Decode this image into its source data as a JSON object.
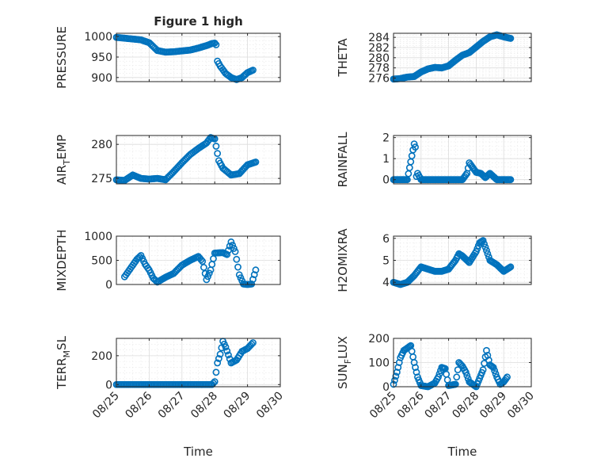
{
  "chart_data": [
    {
      "id": "pressure",
      "type": "scatter",
      "title": "Figure 1 high",
      "ylabel": "PRESSURE",
      "xlabel": "",
      "xlim": [
        "08/25",
        "08/30"
      ],
      "ylim": [
        890,
        1008
      ],
      "yticks": [
        "900",
        "950",
        "1000"
      ],
      "xticks": [],
      "grid": true,
      "color": "#0072bd",
      "x": [
        "08/25 00:00",
        "08/25 06:00",
        "08/25 12:00",
        "08/25 18:00",
        "08/26 00:00",
        "08/26 06:00",
        "08/26 12:00",
        "08/26 18:00",
        "08/27 00:00",
        "08/27 06:00",
        "08/27 12:00",
        "08/27 18:00",
        "08/27 22:00",
        "08/28 00:00",
        "08/28 01:00",
        "08/28 02:00",
        "08/28 04:00",
        "08/28 08:00",
        "08/28 12:00",
        "08/28 16:00",
        "08/28 20:00",
        "08/29 00:00",
        "08/29 04:00"
      ],
      "y": [
        998,
        996,
        994,
        992,
        985,
        966,
        962,
        963,
        965,
        967,
        972,
        978,
        983,
        984,
        980,
        940,
        928,
        910,
        900,
        895,
        900,
        912,
        918
      ]
    },
    {
      "id": "theta",
      "type": "scatter",
      "title": "",
      "ylabel": "THETA",
      "xlabel": "",
      "xlim": [
        "08/25",
        "08/30"
      ],
      "ylim": [
        275.3,
        284.8
      ],
      "yticks": [
        "276",
        "278",
        "280",
        "282",
        "284"
      ],
      "xticks": [],
      "grid": true,
      "color": "#0072bd",
      "x": [
        "08/25 00:00",
        "08/25 06:00",
        "08/25 12:00",
        "08/25 18:00",
        "08/26 00:00",
        "08/26 06:00",
        "08/26 12:00",
        "08/26 18:00",
        "08/27 00:00",
        "08/27 06:00",
        "08/27 12:00",
        "08/27 18:00",
        "08/28 00:00",
        "08/28 06:00",
        "08/28 12:00",
        "08/28 18:00",
        "08/29 00:00",
        "08/29 06:00"
      ],
      "y": [
        275.8,
        275.9,
        276.2,
        276.3,
        277.2,
        277.8,
        278.1,
        278.0,
        278.4,
        279.5,
        280.5,
        281.0,
        282.1,
        283.2,
        284.1,
        284.5,
        284.1,
        283.8
      ]
    },
    {
      "id": "air_temp",
      "type": "scatter",
      "title": "",
      "ylabel": "AIR_TEMP",
      "ylabel_parts": [
        "AIR",
        "T",
        "EMP"
      ],
      "xlabel": "",
      "xlim": [
        "08/25",
        "08/30"
      ],
      "ylim": [
        274.2,
        281.3
      ],
      "yticks": [
        "275",
        "280"
      ],
      "xticks": [],
      "grid": true,
      "color": "#0072bd",
      "x": [
        "08/25 00:00",
        "08/25 06:00",
        "08/25 12:00",
        "08/25 18:00",
        "08/26 00:00",
        "08/26 06:00",
        "08/26 12:00",
        "08/26 18:00",
        "08/27 00:00",
        "08/27 06:00",
        "08/27 12:00",
        "08/27 18:00",
        "08/27 21:00",
        "08/28 00:00",
        "08/28 03:00",
        "08/28 06:00",
        "08/28 12:00",
        "08/28 18:00",
        "08/29 00:00",
        "08/29 06:00"
      ],
      "y": [
        274.8,
        274.7,
        275.5,
        275.0,
        274.9,
        275.0,
        274.8,
        276.0,
        277.3,
        278.5,
        279.4,
        280.2,
        281.0,
        280.8,
        277.6,
        276.5,
        275.5,
        275.7,
        277.0,
        277.4
      ]
    },
    {
      "id": "rainfall",
      "type": "scatter",
      "title": "",
      "ylabel": "RAINFALL",
      "xlabel": "",
      "xlim": [
        "08/25",
        "08/30"
      ],
      "ylim": [
        -0.2,
        2.1
      ],
      "yticks": [
        "0",
        "1",
        "2"
      ],
      "xticks": [],
      "grid": true,
      "color": "#0072bd",
      "x": [
        "08/25 00:00",
        "08/25 06:00",
        "08/25 12:00",
        "08/25 15:00",
        "08/25 18:00",
        "08/25 19:00",
        "08/25 20:00",
        "08/25 21:00",
        "08/26 00:00",
        "08/26 06:00",
        "08/26 12:00",
        "08/26 18:00",
        "08/27 00:00",
        "08/27 06:00",
        "08/27 12:00",
        "08/27 16:00",
        "08/27 18:00",
        "08/28 00:00",
        "08/28 04:00",
        "08/28 08:00",
        "08/28 12:00",
        "08/28 18:00",
        "08/29 00:00",
        "08/29 06:00"
      ],
      "y": [
        0,
        0,
        0,
        0.85,
        1.7,
        1.55,
        0.15,
        0.3,
        0,
        0,
        0,
        0,
        0,
        0,
        0,
        0.3,
        0.8,
        0.35,
        0.3,
        0.1,
        0.3,
        0,
        0,
        0
      ]
    },
    {
      "id": "mixdepth",
      "type": "scatter",
      "title": "",
      "ylabel": "MIXDEPTH",
      "xlabel": "",
      "xlim": [
        "08/25",
        "08/30"
      ],
      "ylim": [
        0,
        1000
      ],
      "yticks": [
        "0",
        "500",
        "1000"
      ],
      "xticks": [],
      "grid": true,
      "color": "#0072bd",
      "x": [
        "08/25 06:00",
        "08/25 09:00",
        "08/25 12:00",
        "08/25 15:00",
        "08/25 18:00",
        "08/25 21:00",
        "08/26 00:00",
        "08/26 03:00",
        "08/26 06:00",
        "08/26 12:00",
        "08/26 18:00",
        "08/27 00:00",
        "08/27 06:00",
        "08/27 12:00",
        "08/27 15:00",
        "08/27 18:00",
        "08/27 21:00",
        "08/28 00:00",
        "08/28 06:00",
        "08/28 09:00",
        "08/28 12:00",
        "08/28 15:00",
        "08/28 18:00",
        "08/28 21:00",
        "08/29 00:00",
        "08/29 03:00",
        "08/29 06:00"
      ],
      "y": [
        160,
        280,
        400,
        520,
        600,
        420,
        300,
        130,
        50,
        150,
        230,
        400,
        500,
        580,
        480,
        100,
        300,
        650,
        660,
        620,
        880,
        680,
        200,
        10,
        0,
        10,
        300
      ]
    },
    {
      "id": "h2omixra",
      "type": "scatter",
      "title": "",
      "ylabel": "H2OMIXRA",
      "xlabel": "",
      "xlim": [
        "08/25",
        "08/30"
      ],
      "ylim": [
        3.9,
        6.1
      ],
      "yticks": [
        "4",
        "5",
        "6"
      ],
      "xticks": [],
      "grid": true,
      "color": "#0072bd",
      "x": [
        "08/25 00:00",
        "08/25 06:00",
        "08/25 12:00",
        "08/25 18:00",
        "08/26 00:00",
        "08/26 06:00",
        "08/26 12:00",
        "08/26 18:00",
        "08/27 00:00",
        "08/27 06:00",
        "08/27 09:00",
        "08/27 12:00",
        "08/27 18:00",
        "08/28 00:00",
        "08/28 03:00",
        "08/28 06:00",
        "08/28 12:00",
        "08/28 18:00",
        "08/29 00:00",
        "08/29 06:00"
      ],
      "y": [
        4.0,
        3.9,
        4.0,
        4.3,
        4.7,
        4.6,
        4.5,
        4.5,
        4.6,
        5.0,
        5.3,
        5.2,
        4.9,
        5.4,
        5.8,
        5.9,
        5.0,
        4.8,
        4.5,
        4.7
      ]
    },
    {
      "id": "terr_msl",
      "type": "scatter",
      "title": "",
      "ylabel": "TERR_MSL",
      "ylabel_parts": [
        "TERR",
        "M",
        "SL"
      ],
      "xlabel": "Time",
      "xlim": [
        "08/25",
        "08/30"
      ],
      "ylim": [
        -15,
        320
      ],
      "yticks": [
        "0",
        "200"
      ],
      "xticks": [
        "08/25",
        "08/26",
        "08/27",
        "08/28",
        "08/29",
        "08/30"
      ],
      "grid": true,
      "color": "#0072bd",
      "x": [
        "08/25 00:00",
        "08/25 06:00",
        "08/25 12:00",
        "08/25 18:00",
        "08/26 00:00",
        "08/26 06:00",
        "08/26 12:00",
        "08/26 18:00",
        "08/27 00:00",
        "08/27 06:00",
        "08/27 12:00",
        "08/27 18:00",
        "08/27 22:00",
        "08/28 00:00",
        "08/28 02:00",
        "08/28 04:00",
        "08/28 06:00",
        "08/28 08:00",
        "08/28 12:00",
        "08/28 16:00",
        "08/28 20:00",
        "08/29 00:00",
        "08/29 04:00"
      ],
      "y": [
        0,
        0,
        0,
        0,
        0,
        0,
        0,
        0,
        0,
        0,
        0,
        0,
        0,
        20,
        150,
        210,
        300,
        260,
        150,
        170,
        230,
        250,
        290
      ]
    },
    {
      "id": "sun_flux",
      "type": "scatter",
      "title": "",
      "ylabel": "SUN_FLUX",
      "ylabel_parts": [
        "SUN",
        "F",
        "LUX"
      ],
      "xlabel": "Time",
      "xlim": [
        "08/25",
        "08/30"
      ],
      "ylim": [
        0,
        200
      ],
      "yticks": [
        "0",
        "100",
        "200"
      ],
      "xticks": [
        "08/25",
        "08/26",
        "08/27",
        "08/28",
        "08/29",
        "08/30"
      ],
      "grid": true,
      "color": "#0072bd",
      "x": [
        "08/25 00:00",
        "08/25 03:00",
        "08/25 06:00",
        "08/25 09:00",
        "08/25 12:00",
        "08/25 15:00",
        "08/25 18:00",
        "08/25 21:00",
        "08/26 00:00",
        "08/26 06:00",
        "08/26 12:00",
        "08/26 15:00",
        "08/26 18:00",
        "08/26 21:00",
        "08/27 00:00",
        "08/27 06:00",
        "08/27 09:00",
        "08/27 12:00",
        "08/27 15:00",
        "08/27 18:00",
        "08/28 00:00",
        "08/28 06:00",
        "08/28 09:00",
        "08/28 12:00",
        "08/28 15:00",
        "08/28 18:00",
        "08/28 21:00",
        "08/29 00:00",
        "08/29 03:00"
      ],
      "y": [
        10,
        60,
        120,
        150,
        160,
        170,
        100,
        40,
        5,
        0,
        15,
        40,
        80,
        75,
        5,
        10,
        100,
        85,
        60,
        20,
        0,
        70,
        150,
        90,
        80,
        40,
        10,
        20,
        40
      ]
    }
  ]
}
